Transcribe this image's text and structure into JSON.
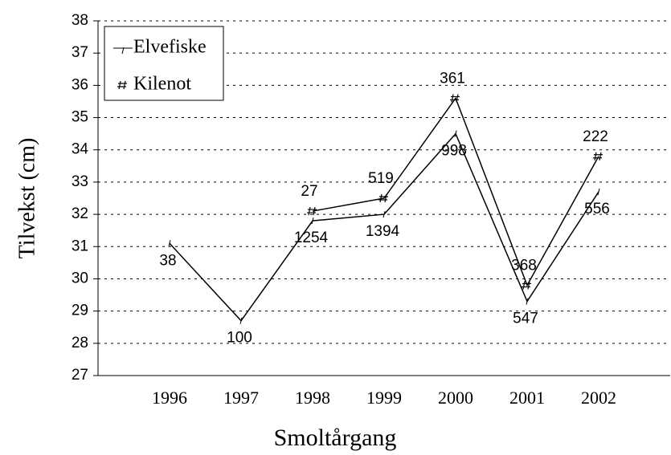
{
  "chart_data": {
    "type": "line",
    "x_label": "Smoltårgang",
    "y_label": "Tilvekst (cm)",
    "categories": [
      "1996",
      "1997",
      "1998",
      "1999",
      "2000",
      "2001",
      "2002"
    ],
    "series": [
      {
        "name": "Elvefiske",
        "color": "#000000",
        "values": [
          31.1,
          28.7,
          31.8,
          32.0,
          34.5,
          29.3,
          32.7
        ],
        "sample_sizes": [
          38,
          100,
          1254,
          1394,
          998,
          547,
          556
        ]
      },
      {
        "name": "Kilenot",
        "color": "#000000",
        "values": [
          null,
          null,
          32.1,
          32.5,
          35.6,
          29.8,
          33.8
        ],
        "sample_sizes": [
          null,
          null,
          27,
          519,
          361,
          368,
          222
        ]
      }
    ],
    "ylim": [
      27,
      38
    ],
    "yticks": [
      27,
      28,
      29,
      30,
      31,
      32,
      33,
      34,
      35,
      36,
      37,
      38
    ],
    "grid": true
  }
}
